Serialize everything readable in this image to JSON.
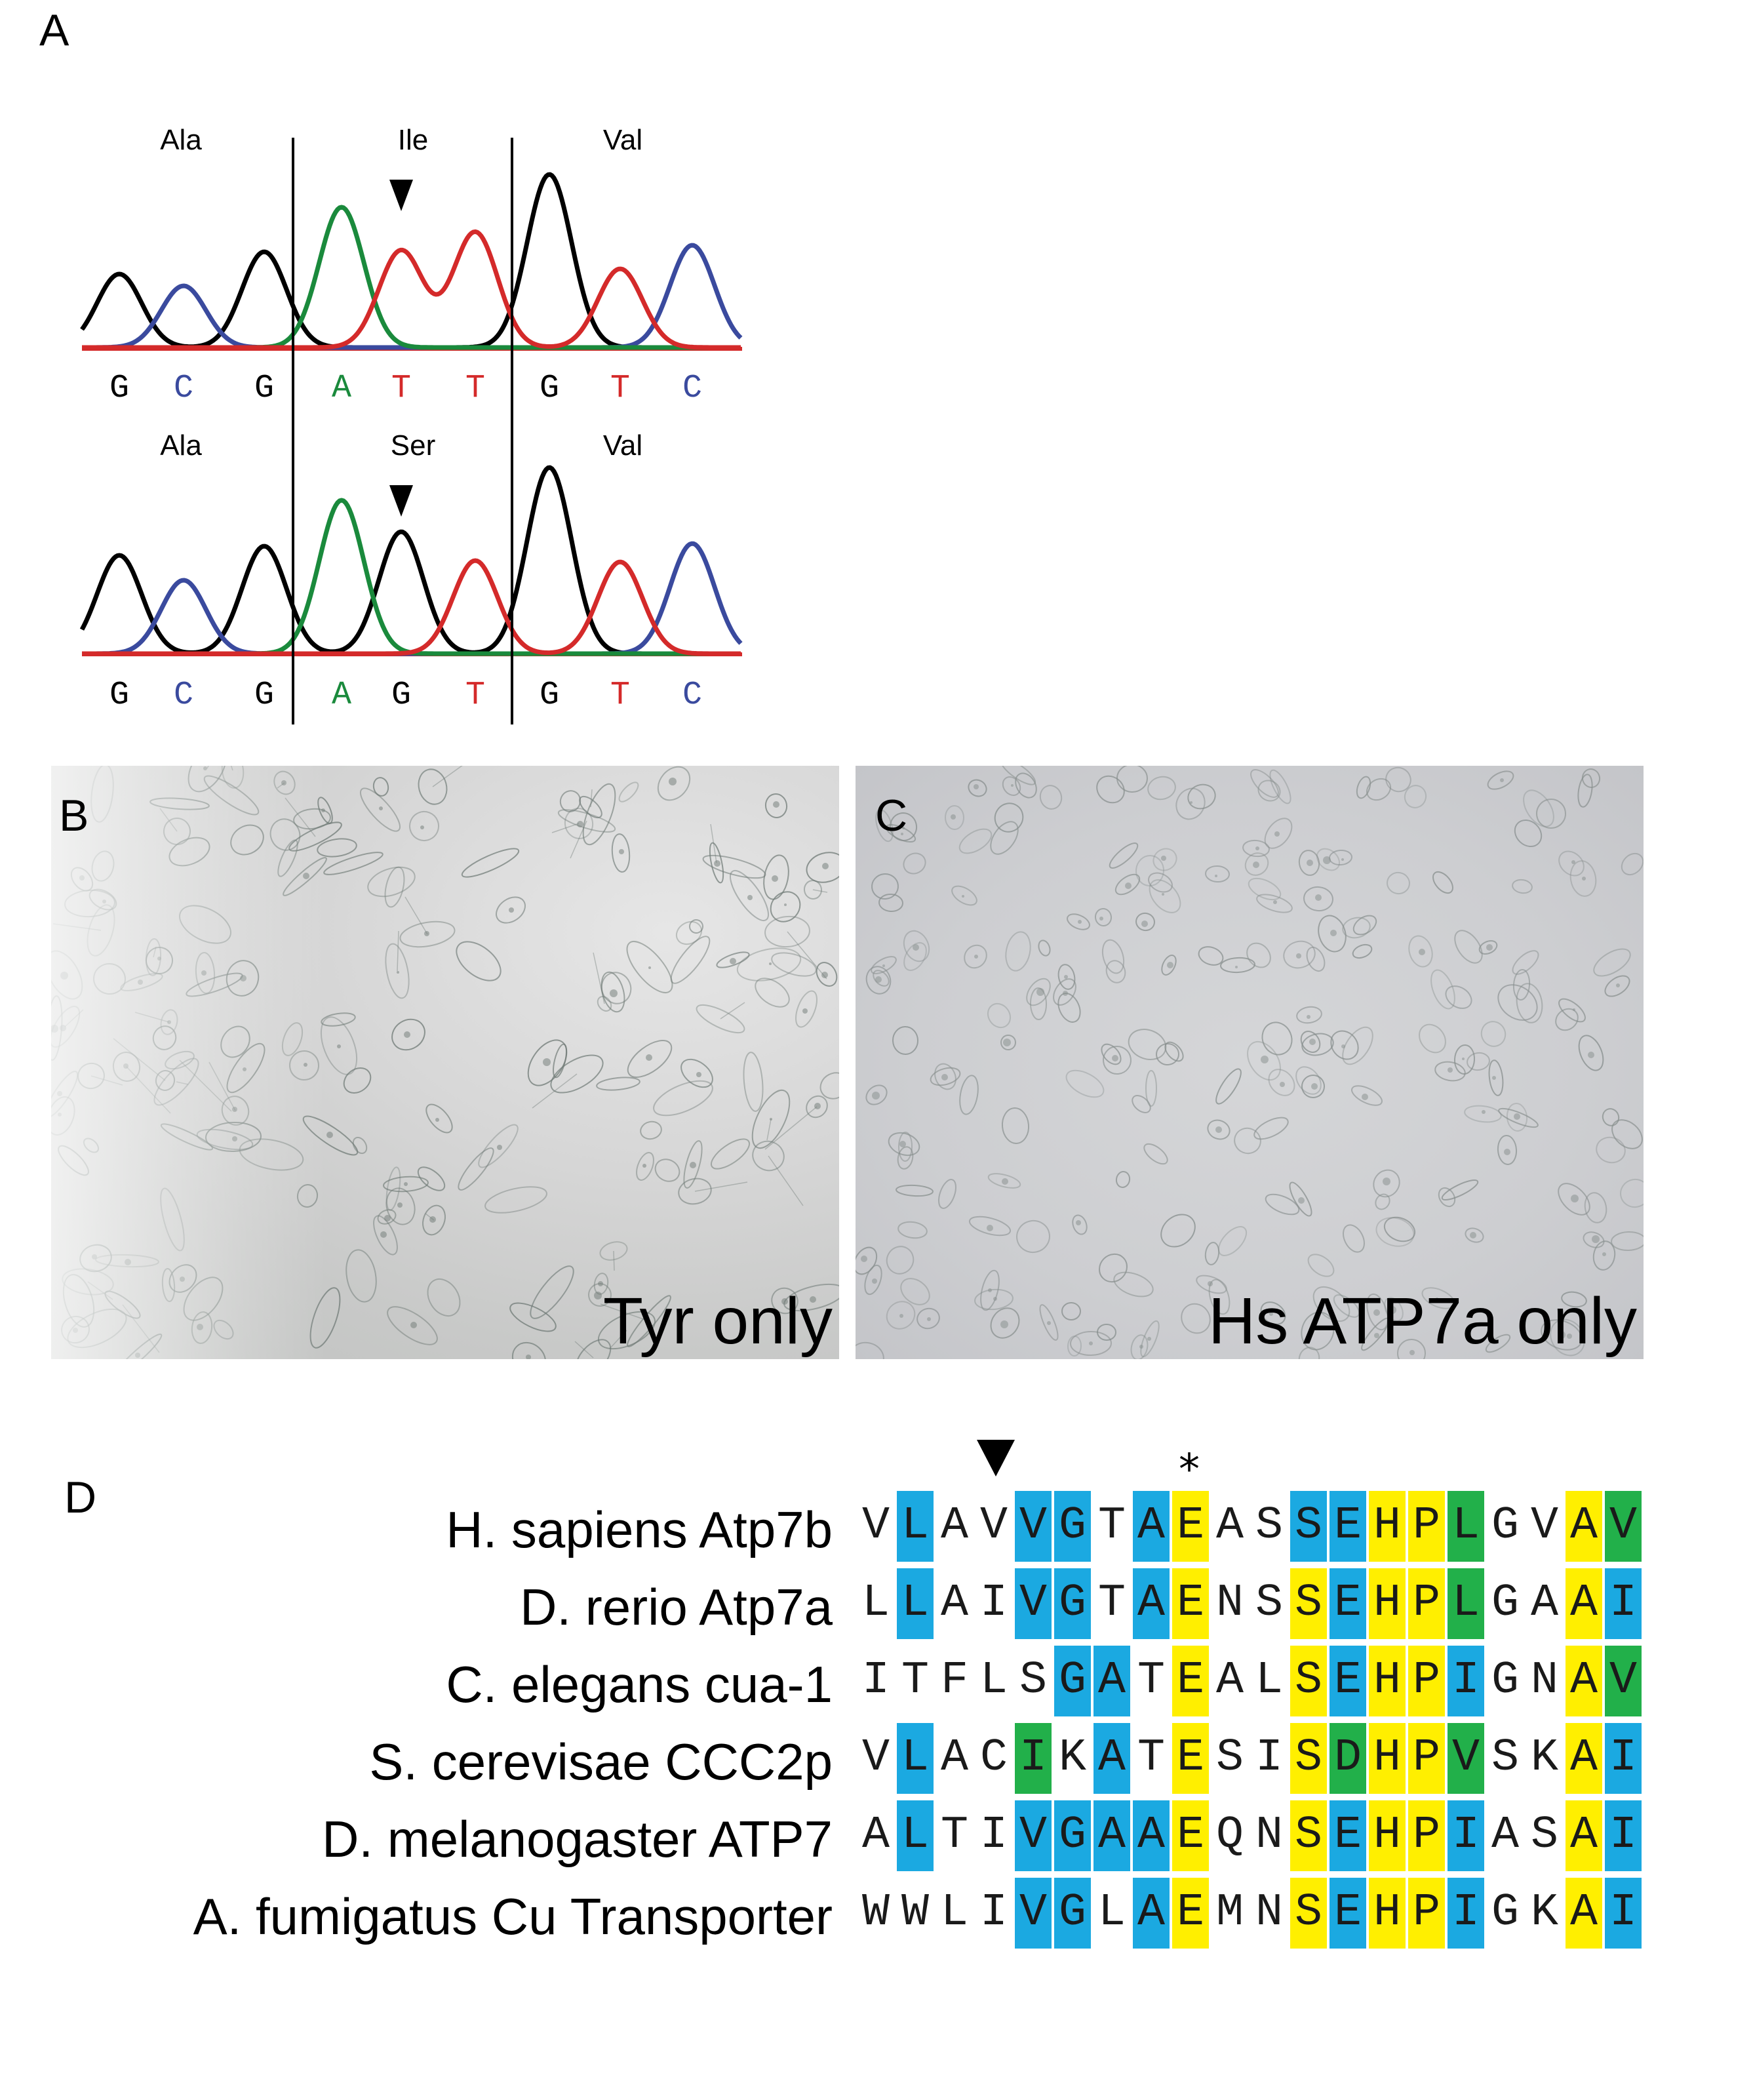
{
  "panels": {
    "a": "A",
    "b": "B",
    "c": "C",
    "d": "D"
  },
  "panel_a": {
    "traces": [
      {
        "codons": [
          "Ala",
          "Ile",
          "Val"
        ],
        "bases": [
          "G",
          "C",
          "G",
          "A",
          "T",
          "T",
          "G",
          "T",
          "C"
        ]
      },
      {
        "codons": [
          "Ala",
          "Ser",
          "Val"
        ],
        "bases": [
          "G",
          "C",
          "G",
          "A",
          "G",
          "T",
          "G",
          "T",
          "C"
        ]
      }
    ],
    "base_colors": {
      "G": "#000000",
      "C": "#3a4a9e",
      "A": "#1a8a3c",
      "T": "#d42a2a"
    },
    "arrow_marks_base_index": 4
  },
  "panel_b": {
    "label": "Tyr only"
  },
  "panel_c": {
    "label": "Hs ATP7a only"
  },
  "panel_d": {
    "arrow_column": 3,
    "asterisk": "*",
    "asterisk_column": 8,
    "colors": {
      "b": "#1ba9e1",
      "y": "#ffef00",
      "g": "#22b04a"
    },
    "rows": [
      {
        "species": "H. sapiens Atp7b",
        "seq": "VLAVVGTAEASSEHPLGVAV",
        "shade": "-b--bb-by--bbyyg--yg"
      },
      {
        "species": "D. rerio Atp7a",
        "seq": "LLAIVGTAENSSEHPLGAAI",
        "shade": "-b--bb-by--ybyyg--yb"
      },
      {
        "species": "C. elegans cua-1",
        "seq": "ITFLSGATEALSEHPIGNAV",
        "shade": "-----bb-y--ybyyb--yg"
      },
      {
        "species": "S. cerevisae CCC2p",
        "seq": "VLACIKATESISDHPVSKAI",
        "shade": "-b--g-b-y--ygyyg--yb"
      },
      {
        "species": "D. melanogaster ATP7",
        "seq": "ALTIVGAAEQNSEHPIASAI",
        "shade": "-b--bbbby--ybyyb--yb"
      },
      {
        "species": "A. fumigatus Cu Transporter",
        "seq": "WWLIVGLAEMNSEHPIGKAI",
        "shade": "----bb-by--ybyyb--yb"
      }
    ]
  }
}
